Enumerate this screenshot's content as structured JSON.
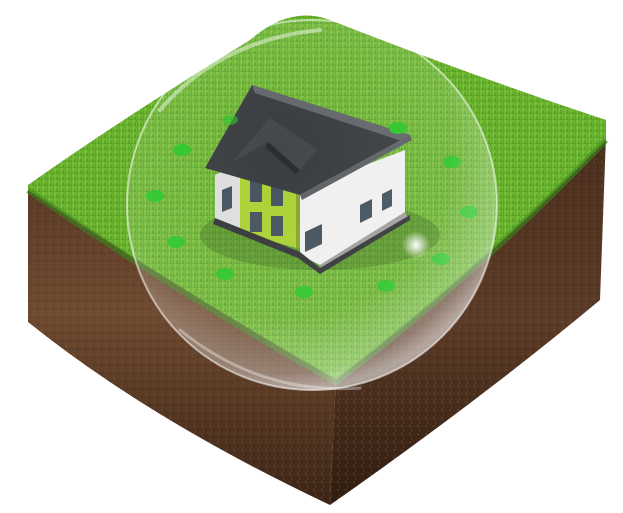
{
  "scene": {
    "subject": "house-in-protective-bubble-on-grass-soil-block",
    "colors": {
      "background": "#ffffff",
      "grass_light": "#8ccf3e",
      "grass_mid": "#5fae2a",
      "grass_dark": "#3e8a1c",
      "soil_light": "#7a5238",
      "soil_dark": "#3f2618",
      "roof": "#2f3236",
      "roof_highlight": "#5a5e63",
      "wall_white": "#f2f2f2",
      "wall_shade": "#cfcfcf",
      "accent_green": "#a6cf2a",
      "window": "#3a4a55",
      "marker_green": "#22c21d",
      "bubble_tint": "#ffffff"
    },
    "markers": 12
  }
}
